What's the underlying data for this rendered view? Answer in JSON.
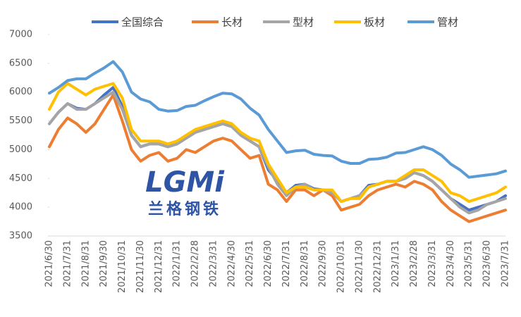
{
  "chart_data": {
    "type": "line",
    "categories": [
      "2021/6/30",
      null,
      "2021/7/31",
      null,
      "2021/8/31",
      null,
      "2021/9/30",
      null,
      "2021/10/31",
      null,
      "2021/11/30",
      null,
      "2021/12/31",
      null,
      "2022/1/31",
      null,
      "2022/2/28",
      null,
      "2022/3/31",
      null,
      "2022/4/30",
      null,
      "2022/5/31",
      null,
      "2022/6/30",
      null,
      "2022/7/31",
      null,
      "2022/8/31",
      null,
      "2022/9/30",
      null,
      "2022/10/31",
      null,
      "2022/11/30",
      null,
      "2022/12/31",
      null,
      "2023/1/31",
      null,
      "2023/2/28",
      null,
      "2023/3/31",
      null,
      "2023/4/30",
      null,
      "2023/5/31",
      null,
      "2023/6/30",
      null,
      "2023/7/31"
    ],
    "series": [
      {
        "name": "全国综合",
        "color": "#4472c4",
        "values": [
          5450,
          5650,
          5800,
          5720,
          5700,
          5800,
          5950,
          6080,
          5750,
          5250,
          5050,
          5100,
          5100,
          5050,
          5100,
          5200,
          5300,
          5350,
          5400,
          5450,
          5400,
          5250,
          5150,
          5050,
          4650,
          4450,
          4250,
          4380,
          4400,
          4320,
          4300,
          4280,
          4100,
          4150,
          4200,
          4380,
          4400,
          4450,
          4450,
          4500,
          4600,
          4550,
          4450,
          4300,
          4150,
          4050,
          3950,
          4000,
          4050,
          4100,
          4200
        ]
      },
      {
        "name": "长材",
        "color": "#ed7d31",
        "values": [
          5050,
          5350,
          5550,
          5450,
          5300,
          5450,
          5700,
          5950,
          5500,
          5000,
          4800,
          4900,
          4950,
          4800,
          4850,
          5000,
          4950,
          5050,
          5150,
          5200,
          5150,
          5000,
          4850,
          4900,
          4400,
          4300,
          4100,
          4300,
          4300,
          4200,
          4300,
          4200,
          3950,
          4000,
          4050,
          4200,
          4300,
          4350,
          4400,
          4350,
          4450,
          4400,
          4300,
          4100,
          3950,
          3850,
          3750,
          3800,
          3850,
          3900,
          3950
        ]
      },
      {
        "name": "型材",
        "color": "#a5a5a5",
        "values": [
          5450,
          5650,
          5800,
          5700,
          5700,
          5800,
          5900,
          6000,
          5700,
          5250,
          5050,
          5100,
          5100,
          5050,
          5100,
          5200,
          5300,
          5350,
          5400,
          5450,
          5400,
          5250,
          5150,
          5050,
          4700,
          4400,
          4200,
          4350,
          4400,
          4300,
          4300,
          4250,
          4100,
          4150,
          4200,
          4350,
          4400,
          4450,
          4450,
          4500,
          4600,
          4550,
          4450,
          4300,
          4150,
          4000,
          3900,
          3950,
          4050,
          4100,
          4150
        ]
      },
      {
        "name": "板材",
        "color": "#ffc000",
        "values": [
          5700,
          6000,
          6150,
          6050,
          5950,
          6050,
          6100,
          6150,
          5900,
          5350,
          5150,
          5150,
          5150,
          5100,
          5150,
          5250,
          5350,
          5400,
          5450,
          5500,
          5450,
          5300,
          5200,
          5150,
          4750,
          4500,
          4250,
          4350,
          4350,
          4300,
          4300,
          4300,
          4100,
          4150,
          4150,
          4350,
          4400,
          4450,
          4450,
          4550,
          4650,
          4650,
          4550,
          4450,
          4250,
          4200,
          4100,
          4150,
          4200,
          4250,
          4350
        ]
      },
      {
        "name": "管材",
        "color": "#5b9bd5",
        "values": [
          5980,
          6080,
          6200,
          6230,
          6230,
          6330,
          6420,
          6530,
          6350,
          6000,
          5880,
          5830,
          5700,
          5670,
          5680,
          5750,
          5770,
          5850,
          5920,
          5980,
          5970,
          5880,
          5720,
          5600,
          5350,
          5150,
          4950,
          4980,
          4990,
          4920,
          4900,
          4890,
          4800,
          4760,
          4760,
          4830,
          4840,
          4870,
          4940,
          4950,
          5000,
          5050,
          5000,
          4900,
          4750,
          4650,
          4520,
          4540,
          4560,
          4580,
          4630
        ]
      }
    ],
    "ylim": [
      3500,
      7000
    ],
    "yticks": [
      3500,
      4000,
      4500,
      5000,
      5500,
      6000,
      6500,
      7000
    ],
    "logo": {
      "mark": "LGMi",
      "name": "兰格钢铁"
    }
  }
}
